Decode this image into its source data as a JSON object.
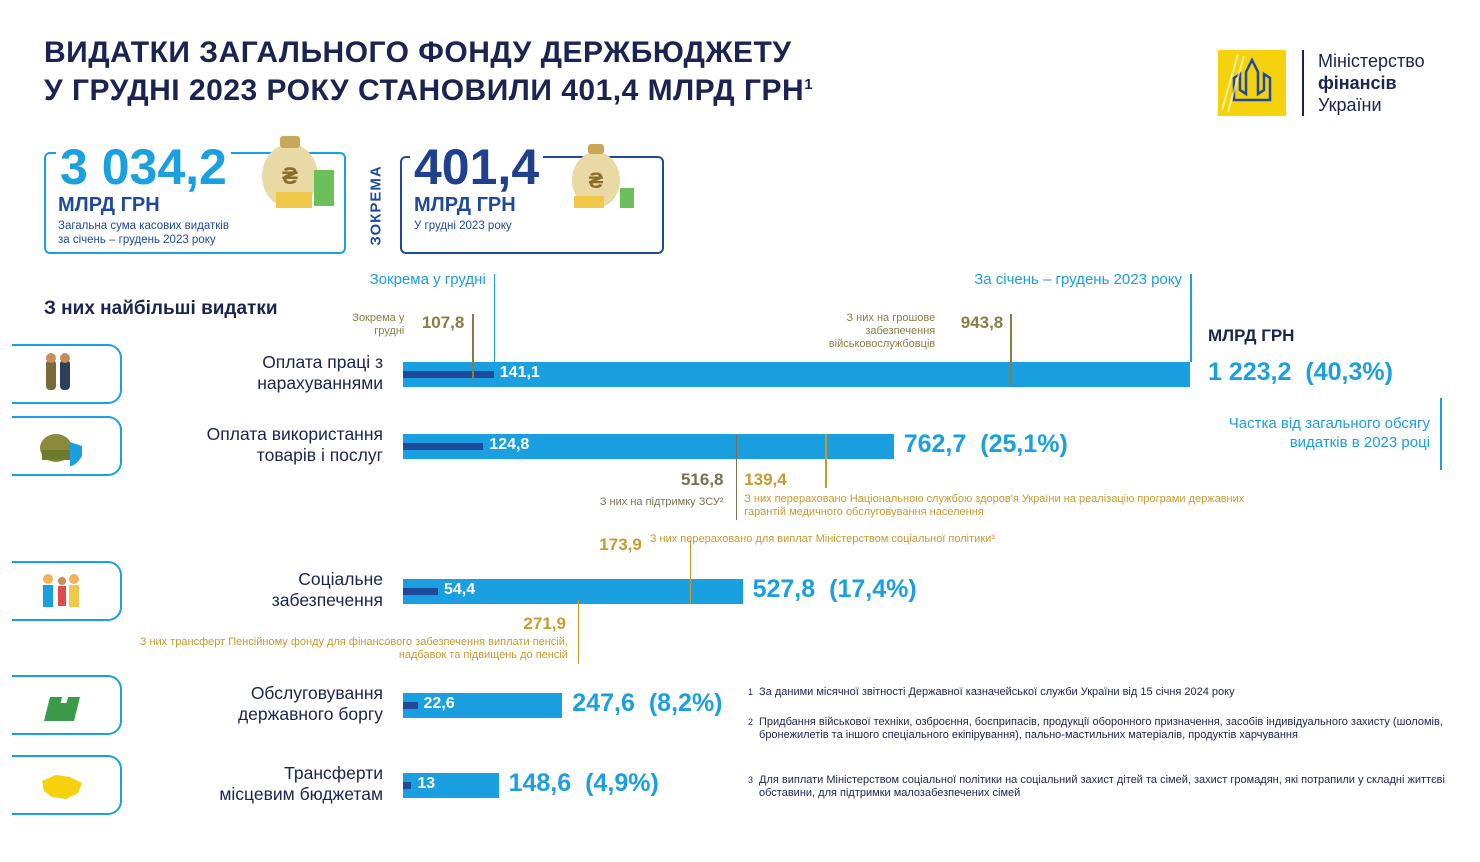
{
  "header": {
    "title_line1": "ВИДАТКИ ЗАГАЛЬНОГО ФОНДУ ДЕРЖБЮДЖЕТУ",
    "title_line2": "У ГРУДНІ 2023 РОКУ СТАНОВИЛИ 401,4 МЛРД ГРН",
    "title_footnote": "1",
    "logo": [
      "Міністерство",
      "фінансів",
      "України"
    ]
  },
  "summary": {
    "total": {
      "amount": "3 034,2",
      "unit": "МЛРД ГРН",
      "caption_line1": "Загальна сума касових видатків",
      "caption_line2": "за січень – грудень 2023 року"
    },
    "separator": "ЗОКРЕМА",
    "december": {
      "amount": "401,4",
      "unit": "МЛРД ГРН",
      "caption": "У грудні 2023 року"
    }
  },
  "chart_data": {
    "type": "bar",
    "title": "З них найбільші видатки",
    "unit": "МЛРД ГРН",
    "share_note": "Частка від загального обсягу видатків в 2023 році",
    "categories": [
      "Оплата праці з нарахуваннями",
      "Оплата використання товарів і послуг",
      "Соціальне забезпечення",
      "Обслуговування державного боргу",
      "Трансферти місцевим бюджетам"
    ],
    "series": [
      {
        "name": "Зокрема у грудні",
        "color": "#1f4a9c",
        "values": [
          141.1,
          124.8,
          54.4,
          22.6,
          13
        ],
        "value_labels": [
          "141,1",
          "124,8",
          "54,4",
          "22,6",
          "13"
        ]
      },
      {
        "name": "За січень – грудень 2023 року",
        "color": "#1a9fe0",
        "values": [
          1223.2,
          762.7,
          527.8,
          247.6,
          148.6
        ],
        "value_labels": [
          "1 223,2",
          "762,7",
          "527,8",
          "247,6",
          "148,6"
        ]
      }
    ],
    "shares": {
      "values": [
        40.3,
        25.1,
        17.4,
        8.2,
        4.9
      ],
      "value_labels": [
        "(40,3%)",
        "(25,1%)",
        "(17,4%)",
        "(8,2%)",
        "(4,9%)"
      ]
    },
    "december_details": [
      {
        "value": 107.8,
        "value_label": "107,8",
        "text": "Зокрема у грудні",
        "color": "#8a7d45"
      },
      null,
      null,
      null,
      null
    ],
    "annotations": [
      [
        {
          "value": 943.8,
          "value_label": "943,8",
          "text": "З них на грошове забезпечення військовослужбовців",
          "color": "#8a7d45"
        }
      ],
      [
        {
          "value": 516.8,
          "value_label": "516,8",
          "text": "З них на підтримку ЗСУ²",
          "color": "#7a7152"
        },
        {
          "value": 139.4,
          "value_label": "139,4",
          "text": "З них перераховано Національною службою здоров'я України на реалізацію програми державних гарантій медичного обслуговування населення",
          "color": "#c99a2e"
        }
      ],
      [
        {
          "value": 271.9,
          "value_label": "271,9",
          "text": "З них трансферт Пенсійному фонду для фінансового забезпечення виплати пенсій, надбавок та підвищень до пенсій",
          "color": "#c99a2e"
        },
        {
          "value": 173.9,
          "value_label": "173,9",
          "text": "З них перераховано для виплат Міністерством соціальної політики³",
          "color": "#c99a2e"
        }
      ],
      [],
      []
    ]
  },
  "footnotes": [
    {
      "mark": "1",
      "text": "За даними місячної звітності Державної казначейської служби України від 15 січня 2024 року"
    },
    {
      "mark": "2",
      "text": "Придбання військової техніки, озброєння, боєприпасів, продукції оборонного призначення, засобів індивідуального захисту (шоломів, бронежилетів та іншого спеціального екіпірування), пально-мастильних матеріалів, продуктів харчування"
    },
    {
      "mark": "3",
      "text": "Для виплати Міністерством соціальної політики на соціальний захист дітей та сімей, захист громадян, які потрапили у складні життєві обставини, для підтримки малозабезпечених сімей"
    }
  ]
}
